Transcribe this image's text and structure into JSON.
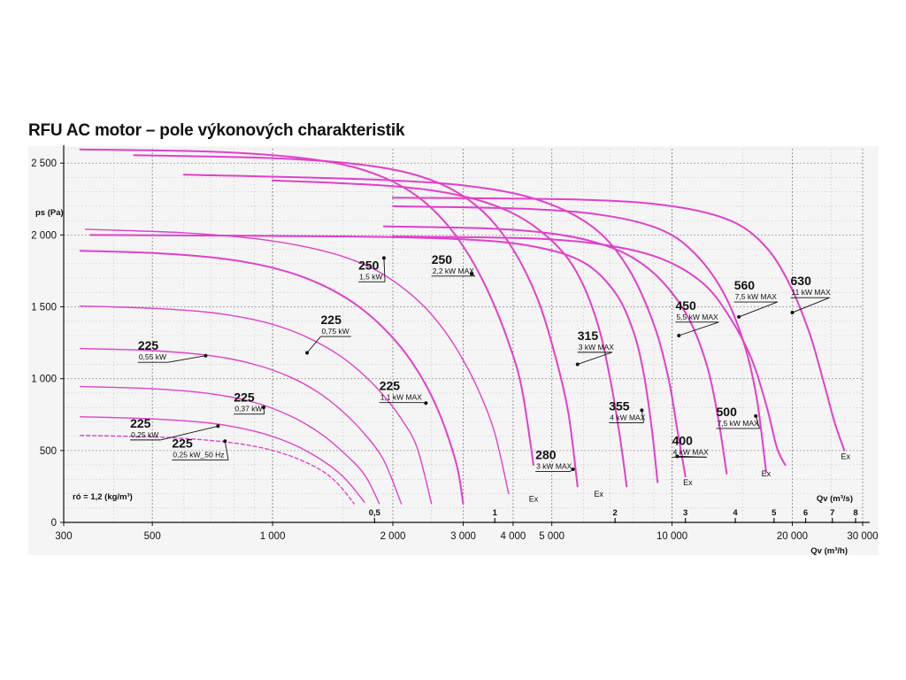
{
  "chart_data": {
    "type": "line",
    "title": "RFU AC motor – pole výkonových charakteristik",
    "xlabel": "Qv (m³/h)",
    "ylabel": "ps (Pa)",
    "x_scale": "log",
    "xlim": [
      300,
      30000
    ],
    "ylim": [
      0,
      2600
    ],
    "grid": true,
    "y_ticks": [
      {
        "value": 0,
        "label": "0"
      },
      {
        "value": 500,
        "label": "500"
      },
      {
        "value": 1000,
        "label": "1 000"
      },
      {
        "value": 1500,
        "label": "1 500"
      },
      {
        "value": 2000,
        "label": "2 000"
      },
      {
        "value": 2500,
        "label": "2 500"
      }
    ],
    "x_ticks": [
      {
        "value": 300,
        "label": "300"
      },
      {
        "value": 500,
        "label": "500"
      },
      {
        "value": 1000,
        "label": "1 000"
      },
      {
        "value": 2000,
        "label": "2 000"
      },
      {
        "value": 3000,
        "label": "3 000"
      },
      {
        "value": 4000,
        "label": "4 000"
      },
      {
        "value": 5000,
        "label": "5 000"
      },
      {
        "value": 10000,
        "label": "10 000"
      },
      {
        "value": 20000,
        "label": "20 000"
      },
      {
        "value": 30000,
        "label": "30 000"
      }
    ],
    "secondary_xlabel": "Qv (m³/s)",
    "secondary_x_ticks": [
      {
        "value": 0.5,
        "label": "0,5"
      },
      {
        "value": 1,
        "label": "1"
      },
      {
        "value": 2,
        "label": "2"
      },
      {
        "value": 3,
        "label": "3"
      },
      {
        "value": 4,
        "label": "4"
      },
      {
        "value": 5,
        "label": "5"
      },
      {
        "value": 6,
        "label": "6"
      },
      {
        "value": 7,
        "label": "7"
      },
      {
        "value": 8,
        "label": "8"
      }
    ],
    "density_note": "ró = 1,2 (kg/m³)",
    "series": [
      {
        "size": "225",
        "power": "0,25 kW_50 Hz",
        "dashed": true,
        "color": "#e040cc",
        "points": [
          [
            330,
            605
          ],
          [
            500,
            595
          ],
          [
            700,
            570
          ],
          [
            900,
            530
          ],
          [
            1100,
            465
          ],
          [
            1300,
            375
          ],
          [
            1450,
            275
          ],
          [
            1600,
            130
          ]
        ],
        "marker": [
          760,
          565
        ],
        "label_at": [
          560,
          520
        ]
      },
      {
        "size": "225",
        "power": "0,25 kW",
        "color": "#e040cc",
        "points": [
          [
            330,
            735
          ],
          [
            500,
            720
          ],
          [
            700,
            690
          ],
          [
            900,
            635
          ],
          [
            1100,
            555
          ],
          [
            1300,
            450
          ],
          [
            1500,
            320
          ],
          [
            1700,
            140
          ]
        ],
        "marker": [
          730,
          670
        ],
        "label_at": [
          440,
          660
        ]
      },
      {
        "size": "225",
        "power": "0,37 kW",
        "color": "#e040cc",
        "points": [
          [
            330,
            945
          ],
          [
            500,
            930
          ],
          [
            700,
            895
          ],
          [
            900,
            835
          ],
          [
            1100,
            745
          ],
          [
            1300,
            630
          ],
          [
            1500,
            490
          ],
          [
            1700,
            330
          ],
          [
            1850,
            130
          ]
        ],
        "marker": [
          950,
          800
        ],
        "label_at": [
          800,
          840
        ]
      },
      {
        "size": "225",
        "power": "0,55 kW",
        "color": "#e040cc",
        "points": [
          [
            330,
            1210
          ],
          [
            500,
            1195
          ],
          [
            700,
            1160
          ],
          [
            900,
            1100
          ],
          [
            1100,
            1015
          ],
          [
            1300,
            905
          ],
          [
            1500,
            770
          ],
          [
            1700,
            615
          ],
          [
            1900,
            430
          ],
          [
            2100,
            130
          ]
        ],
        "marker": [
          680,
          1160
        ],
        "label_at": [
          460,
          1200
        ]
      },
      {
        "size": "225",
        "power": "0,75 kW",
        "color": "#e040cc",
        "points": [
          [
            330,
            1505
          ],
          [
            500,
            1490
          ],
          [
            700,
            1460
          ],
          [
            900,
            1410
          ],
          [
            1100,
            1340
          ],
          [
            1300,
            1250
          ],
          [
            1500,
            1145
          ],
          [
            1700,
            1020
          ],
          [
            1900,
            880
          ],
          [
            2100,
            720
          ],
          [
            2300,
            520
          ],
          [
            2500,
            130
          ]
        ],
        "marker": [
          1220,
          1180
        ],
        "label_at": [
          1320,
          1380
        ]
      },
      {
        "size": "225",
        "power": "1,1 kW MAX",
        "color": "#e040cc",
        "bold": true,
        "points": [
          [
            330,
            1890
          ],
          [
            500,
            1875
          ],
          [
            700,
            1845
          ],
          [
            900,
            1800
          ],
          [
            1100,
            1740
          ],
          [
            1300,
            1665
          ],
          [
            1500,
            1575
          ],
          [
            1700,
            1470
          ],
          [
            1900,
            1350
          ],
          [
            2100,
            1215
          ],
          [
            2300,
            1060
          ],
          [
            2500,
            880
          ],
          [
            2700,
            660
          ],
          [
            2900,
            380
          ],
          [
            3000,
            130
          ]
        ],
        "marker": [
          2420,
          830
        ],
        "label_at": [
          1850,
          920
        ]
      },
      {
        "size": "250",
        "power": "1,5 kW",
        "color": "#e040cc",
        "points": [
          [
            340,
            2040
          ],
          [
            600,
            2015
          ],
          [
            900,
            1975
          ],
          [
            1200,
            1920
          ],
          [
            1500,
            1850
          ],
          [
            1800,
            1760
          ],
          [
            2100,
            1640
          ],
          [
            2400,
            1500
          ],
          [
            2700,
            1330
          ],
          [
            3000,
            1130
          ],
          [
            3300,
            900
          ],
          [
            3600,
            620
          ],
          [
            3900,
            200
          ]
        ],
        "marker": [
          1900,
          1840
        ],
        "label_at": [
          1640,
          1760
        ]
      },
      {
        "size": "250",
        "power": "2,2 kW MAX",
        "color": "#e040cc",
        "bold": true,
        "points": [
          [
            330,
            2595
          ],
          [
            700,
            2580
          ],
          [
            1100,
            2545
          ],
          [
            1500,
            2490
          ],
          [
            1900,
            2400
          ],
          [
            2300,
            2270
          ],
          [
            2700,
            2090
          ],
          [
            3100,
            1860
          ],
          [
            3500,
            1580
          ],
          [
            3900,
            1250
          ],
          [
            4200,
            940
          ],
          [
            4500,
            400
          ]
        ],
        "marker": [
          3150,
          1730
        ],
        "label_at": [
          2500,
          1800
        ]
      },
      {
        "size": "280",
        "power": "3 kW MAX",
        "color": "#e040cc",
        "bold": true,
        "points": [
          [
            450,
            2555
          ],
          [
            1000,
            2535
          ],
          [
            1600,
            2495
          ],
          [
            2200,
            2430
          ],
          [
            2800,
            2320
          ],
          [
            3400,
            2150
          ],
          [
            4000,
            1900
          ],
          [
            4600,
            1560
          ],
          [
            5100,
            1160
          ],
          [
            5500,
            760
          ],
          [
            5800,
            250
          ]
        ],
        "marker": [
          5650,
          370
        ],
        "label_at": [
          4550,
          440
        ]
      },
      {
        "size": "315",
        "power": "3 kW MAX",
        "color": "#e040cc",
        "bold": true,
        "points": [
          [
            1000,
            2380
          ],
          [
            2000,
            2340
          ],
          [
            3000,
            2270
          ],
          [
            4000,
            2150
          ],
          [
            5000,
            1960
          ],
          [
            5800,
            1730
          ],
          [
            6500,
            1390
          ],
          [
            7000,
            1000
          ],
          [
            7400,
            600
          ],
          [
            7700,
            250
          ]
        ],
        "marker": [
          5800,
          1100
        ],
        "label_at": [
          5800,
          1270
        ]
      },
      {
        "size": "355",
        "power": "4 kW MAX",
        "color": "#e040cc",
        "bold": true,
        "points": [
          [
            350,
            2000
          ],
          [
            1500,
            1990
          ],
          [
            3000,
            1970
          ],
          [
            4500,
            1920
          ],
          [
            6000,
            1810
          ],
          [
            7200,
            1600
          ],
          [
            8000,
            1330
          ],
          [
            8500,
            1030
          ],
          [
            8900,
            650
          ],
          [
            9200,
            280
          ]
        ],
        "marker": [
          8400,
          780
        ],
        "label_at": [
          6950,
          780
        ]
      },
      {
        "size": "400",
        "power": "4 kW MAX",
        "color": "#e040cc",
        "bold": true,
        "points": [
          [
            600,
            2420
          ],
          [
            2000,
            2380
          ],
          [
            3500,
            2320
          ],
          [
            5000,
            2210
          ],
          [
            6500,
            2030
          ],
          [
            7800,
            1760
          ],
          [
            9000,
            1380
          ],
          [
            9800,
            1000
          ],
          [
            10300,
            650
          ],
          [
            10800,
            320
          ]
        ],
        "marker": [
          10300,
          460
        ],
        "label_at": [
          10000,
          540
        ]
      },
      {
        "size": "450",
        "power": "5,5 kW MAX",
        "color": "#e040cc",
        "bold": true,
        "points": [
          [
            1900,
            2060
          ],
          [
            3500,
            2045
          ],
          [
            5000,
            2010
          ],
          [
            6500,
            1945
          ],
          [
            8000,
            1840
          ],
          [
            9500,
            1670
          ],
          [
            11000,
            1420
          ],
          [
            12200,
            1100
          ],
          [
            13000,
            750
          ],
          [
            13700,
            340
          ]
        ],
        "marker": [
          10400,
          1300
        ],
        "label_at": [
          10200,
          1480
        ]
      },
      {
        "size": "500",
        "power": "7,5 kW MAX",
        "color": "#e040cc",
        "bold": true,
        "points": [
          [
            2000,
            2200
          ],
          [
            4500,
            2180
          ],
          [
            7000,
            2130
          ],
          [
            9500,
            2030
          ],
          [
            11500,
            1860
          ],
          [
            13500,
            1590
          ],
          [
            15200,
            1230
          ],
          [
            16300,
            860
          ],
          [
            17200,
            350
          ]
        ],
        "marker": [
          16200,
          740
        ],
        "label_at": [
          12900,
          740
        ]
      },
      {
        "size": "560",
        "power": "7,5 kW MAX",
        "color": "#e040cc",
        "bold": true,
        "points": [
          [
            2000,
            1990
          ],
          [
            4500,
            1975
          ],
          [
            7000,
            1925
          ],
          [
            9500,
            1830
          ],
          [
            12000,
            1660
          ],
          [
            14000,
            1420
          ],
          [
            15800,
            1140
          ],
          [
            17200,
            820
          ],
          [
            18300,
            520
          ],
          [
            19200,
            400
          ]
        ],
        "marker": [
          14700,
          1430
        ],
        "label_at": [
          14300,
          1620
        ]
      },
      {
        "size": "630",
        "power": "11 kW MAX",
        "color": "#e040cc",
        "bold": true,
        "points": [
          [
            2000,
            2260
          ],
          [
            6000,
            2245
          ],
          [
            10000,
            2200
          ],
          [
            14000,
            2100
          ],
          [
            17000,
            1930
          ],
          [
            19500,
            1680
          ],
          [
            22000,
            1330
          ],
          [
            24000,
            970
          ],
          [
            25500,
            700
          ],
          [
            27000,
            500
          ]
        ],
        "marker": [
          20000,
          1460
        ],
        "label_at": [
          19800,
          1650
        ]
      }
    ],
    "ex_labels": [
      {
        "text": "Ex",
        "at": [
          4500,
          145
        ]
      },
      {
        "text": "Ex",
        "at": [
          6550,
          180
        ]
      },
      {
        "text": "Ex",
        "at": [
          10950,
          260
        ]
      },
      {
        "text": "Ex",
        "at": [
          17200,
          320
        ]
      },
      {
        "text": "Ex",
        "at": [
          27200,
          440
        ]
      }
    ]
  }
}
